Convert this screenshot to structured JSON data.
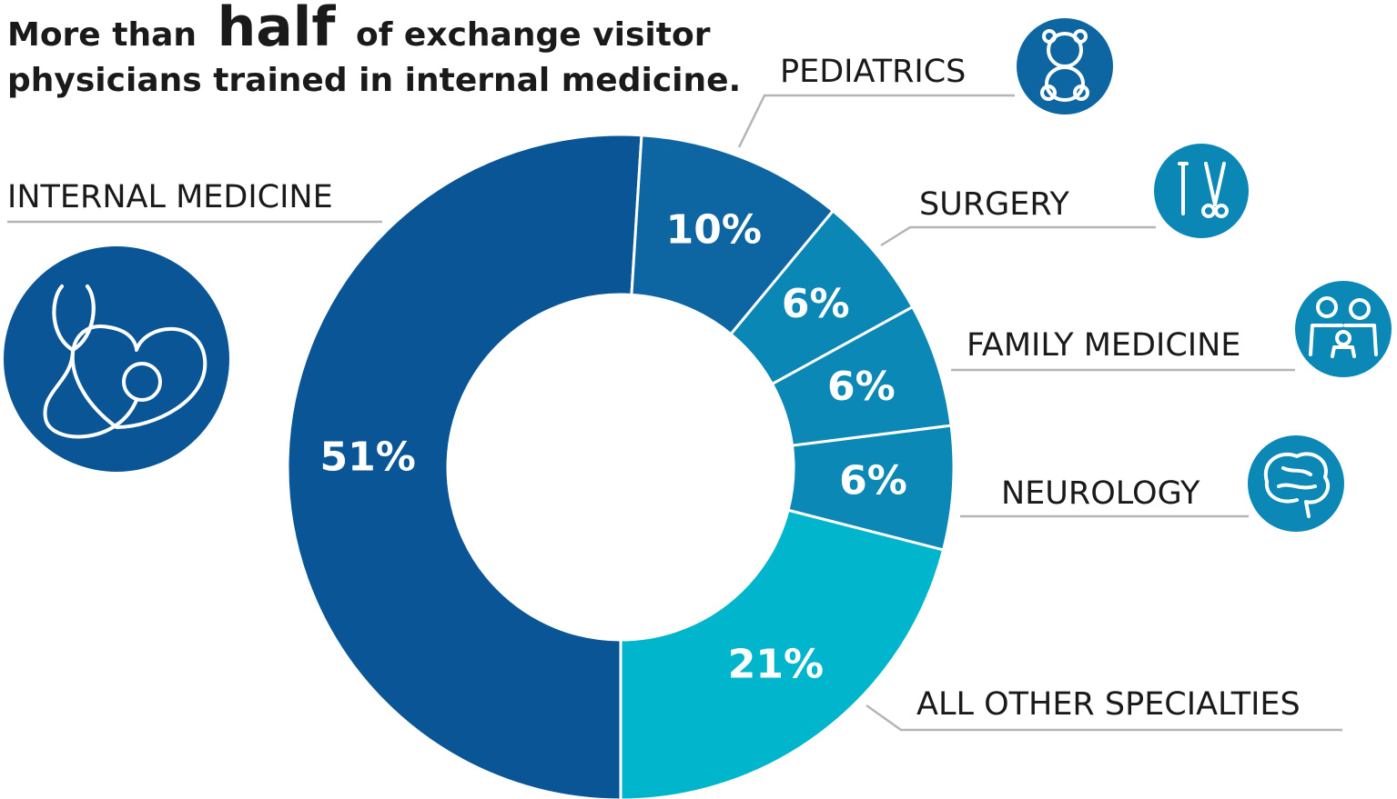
{
  "chart_data": {
    "type": "pie",
    "title_parts": [
      "More than",
      "half",
      "of exchange visitor",
      "physicians trained in internal medicine."
    ],
    "categories": [
      "INTERNAL MEDICINE",
      "PEDIATRICS",
      "SURGERY",
      "FAMILY MEDICINE",
      "NEUROLOGY",
      "ALL OTHER SPECIALTIES"
    ],
    "values": [
      51,
      10,
      6,
      6,
      6,
      21
    ],
    "value_labels": [
      "51%",
      "10%",
      "6%",
      "6%",
      "6%",
      "21%"
    ],
    "colors": [
      "#0a5596",
      "#0d66a2",
      "#0a87b5",
      "#0b88b5",
      "#0b88b5",
      "#00b5cc"
    ]
  }
}
